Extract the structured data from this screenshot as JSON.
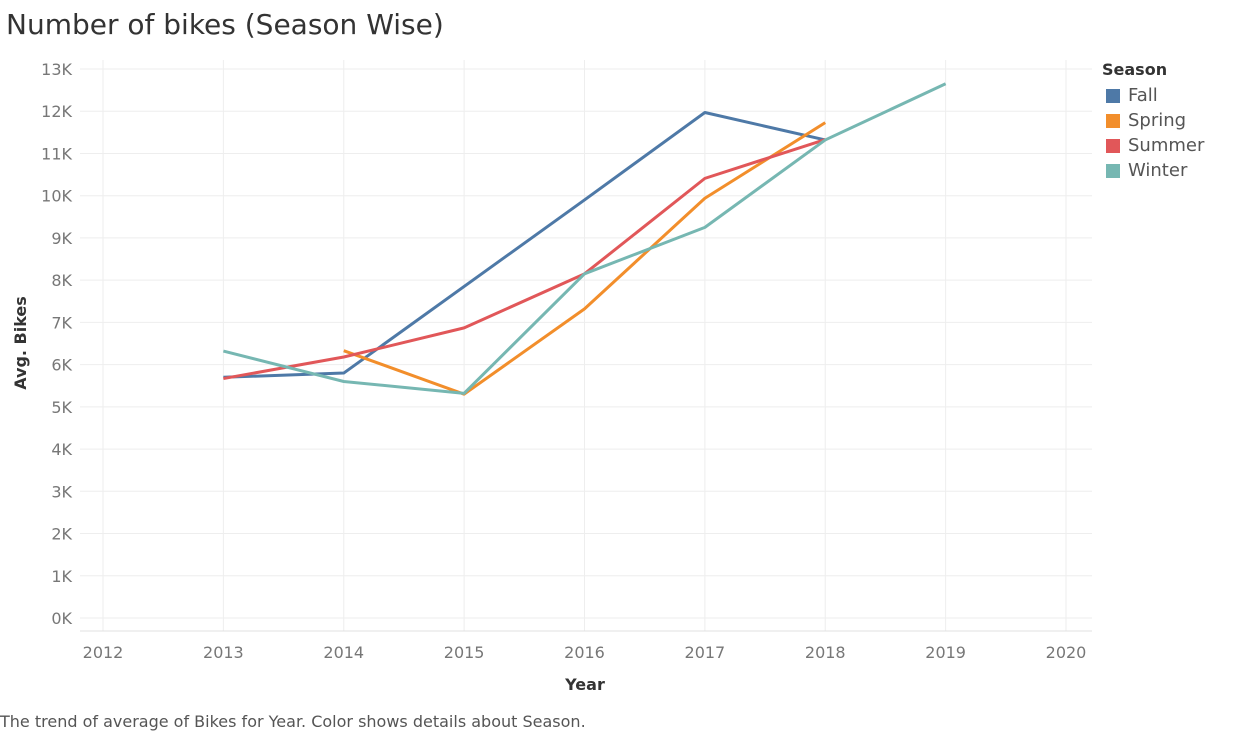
{
  "title": "Number of bikes (Season Wise)",
  "caption": "The trend of average of Bikes for Year.  Color shows details about Season.",
  "legend": {
    "title": "Season",
    "items": [
      {
        "label": "Fall",
        "color": "#4e79a7"
      },
      {
        "label": "Spring",
        "color": "#f28e2b"
      },
      {
        "label": "Summer",
        "color": "#e15759"
      },
      {
        "label": "Winter",
        "color": "#76b7b2"
      }
    ]
  },
  "chart_data": {
    "type": "line",
    "title": "Number of bikes (Season Wise)",
    "xlabel": "Year",
    "ylabel": "Avg. Bikes",
    "xlim": [
      2012,
      2020
    ],
    "ylim": [
      0,
      13000
    ],
    "x_ticks": [
      "2012",
      "2013",
      "2014",
      "2015",
      "2016",
      "2017",
      "2018",
      "2019",
      "2020"
    ],
    "y_ticks": [
      "0K",
      "1K",
      "2K",
      "3K",
      "4K",
      "5K",
      "6K",
      "7K",
      "8K",
      "9K",
      "10K",
      "11K",
      "12K",
      "13K"
    ],
    "grid": true,
    "legend_position": "right",
    "series": [
      {
        "name": "Fall",
        "color": "#4e79a7",
        "points": [
          [
            2013,
            5700
          ],
          [
            2014,
            5800
          ],
          [
            2016,
            9900
          ],
          [
            2017,
            11970
          ],
          [
            2018,
            11320
          ]
        ]
      },
      {
        "name": "Spring",
        "color": "#f28e2b",
        "points": [
          [
            2014,
            6330
          ],
          [
            2015,
            5300
          ],
          [
            2016,
            7320
          ],
          [
            2017,
            9940
          ],
          [
            2018,
            11730
          ]
        ]
      },
      {
        "name": "Summer",
        "color": "#e15759",
        "points": [
          [
            2013,
            5670
          ],
          [
            2014,
            6180
          ],
          [
            2015,
            6870
          ],
          [
            2016,
            8150
          ],
          [
            2017,
            10410
          ],
          [
            2018,
            11330
          ]
        ]
      },
      {
        "name": "Winter",
        "color": "#76b7b2",
        "points": [
          [
            2013,
            6320
          ],
          [
            2014,
            5600
          ],
          [
            2015,
            5320
          ],
          [
            2016,
            8150
          ],
          [
            2017,
            9250
          ],
          [
            2018,
            11320
          ],
          [
            2019,
            12650
          ]
        ]
      }
    ]
  }
}
